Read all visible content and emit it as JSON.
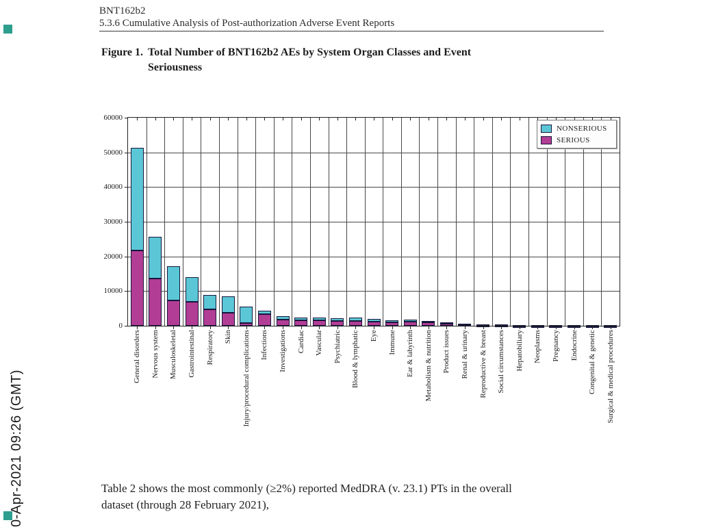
{
  "page": {
    "header_line1": "BNT162b2",
    "header_line2": "5.3.6 Cumulative Analysis of Post-authorization Adverse Event Reports",
    "figure_label": "Figure 1.",
    "figure_title_line1": "Total Number of BNT162b2 AEs by System Organ Classes and Event",
    "figure_title_line2": "Seriousness",
    "body_line1": "Table 2 shows the most commonly (≥2%) reported MedDRA (v. 23.1) PTs in the overall",
    "body_line2": "dataset (through 28 February 2021),",
    "sidebar_timestamp": "0-Apr-2021 09:26 (GMT)"
  },
  "colors": {
    "nonserious": "#5bc6d6",
    "serious": "#b23d95",
    "bar_border": "#15153a",
    "marker": "#2e9e8f",
    "grid": "#474747"
  },
  "chart_data": {
    "type": "bar",
    "stacked": true,
    "title": "Total Number of BNT162b2 AEs by System Organ Classes and Event Seriousness",
    "xlabel": "",
    "ylabel": "",
    "ylim": [
      0,
      60000
    ],
    "yticks": [
      0,
      10000,
      20000,
      30000,
      40000,
      50000,
      60000
    ],
    "grid": true,
    "legend_position": "top-right",
    "legend": [
      {
        "label": "NONSERIOUS",
        "color": "#5bc6d6"
      },
      {
        "label": "SERIOUS",
        "color": "#b23d95"
      }
    ],
    "categories": [
      "General disorders",
      "Nervous system",
      "Musculoskeletal",
      "Gastrointestinal",
      "Respiratory",
      "Skin",
      "Injury/procedural complications",
      "Infections",
      "Investigations",
      "Cardiac",
      "Vascular",
      "Psychiatric",
      "Blood & lymphatic",
      "Eye",
      "Immune",
      "Ear & labyrinth",
      "Metabolism & nutrition",
      "Product issues",
      "Renal & urinary",
      "Reproductive & breast",
      "Social circumstances",
      "Hepatobiliary",
      "Neoplasms",
      "Pregnancy",
      "Endocrine",
      "Congenital & genetic",
      "Surgical & medical procedures"
    ],
    "series": [
      {
        "name": "SERIOUS",
        "color": "#b23d95",
        "values": [
          21700,
          13600,
          7300,
          6900,
          4800,
          3800,
          800,
          3300,
          1700,
          1600,
          1500,
          1300,
          1400,
          1100,
          1050,
          1100,
          1100,
          500,
          350,
          250,
          100,
          150,
          150,
          150,
          100,
          80,
          80
        ]
      },
      {
        "name": "NONSERIOUS",
        "color": "#5bc6d6",
        "values": [
          29600,
          12100,
          9800,
          7200,
          4000,
          4700,
          4800,
          1000,
          1000,
          700,
          900,
          800,
          900,
          800,
          450,
          600,
          300,
          400,
          150,
          200,
          200,
          100,
          100,
          100,
          100,
          120,
          120
        ]
      }
    ]
  }
}
